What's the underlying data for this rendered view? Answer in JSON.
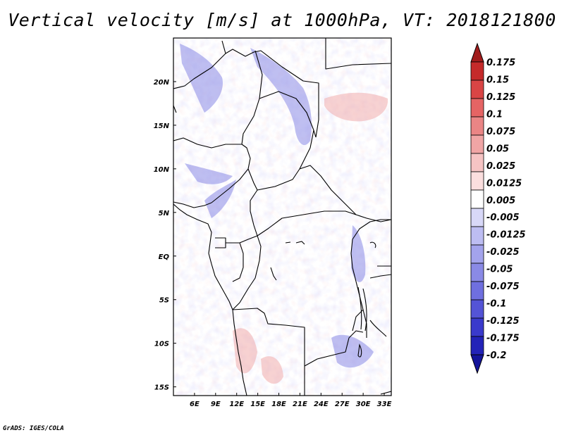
{
  "title": "Vertical velocity [m/s] at 1000hPa, VT: 2018121800",
  "credit": "GrADS: IGES/COLA",
  "map": {
    "lon_range": [
      3,
      34
    ],
    "lat_range": [
      -16,
      25
    ],
    "lon_ticks": [
      "6E",
      "9E",
      "12E",
      "15E",
      "18E",
      "21E",
      "24E",
      "27E",
      "30E",
      "33E"
    ],
    "lat_ticks": [
      "20N",
      "15N",
      "10N",
      "5N",
      "EQ",
      "5S",
      "10S",
      "15S"
    ],
    "lon_tick_values": [
      6,
      9,
      12,
      15,
      18,
      21,
      24,
      27,
      30,
      33
    ],
    "lat_tick_values": [
      20,
      15,
      10,
      5,
      0,
      -5,
      -10,
      -15
    ]
  },
  "colorbar": {
    "labels": [
      "0.175",
      "0.15",
      "0.125",
      "0.1",
      "0.075",
      "0.05",
      "0.025",
      "0.0125",
      "0.005",
      "-0.005",
      "-0.0125",
      "-0.025",
      "-0.05",
      "-0.075",
      "-0.1",
      "-0.125",
      "-0.175",
      "-0.2"
    ],
    "colors": [
      "#a11c1c",
      "#c52a2a",
      "#d94545",
      "#e56464",
      "#ea8585",
      "#f0a5a5",
      "#f6c4c4",
      "#fbdede",
      "#ffffff",
      "#d8d8f8",
      "#bdbdf2",
      "#a3a3ec",
      "#8a8ae6",
      "#6f6fdf",
      "#5454d6",
      "#3a3acc",
      "#2323b8",
      "#14149a"
    ]
  }
}
